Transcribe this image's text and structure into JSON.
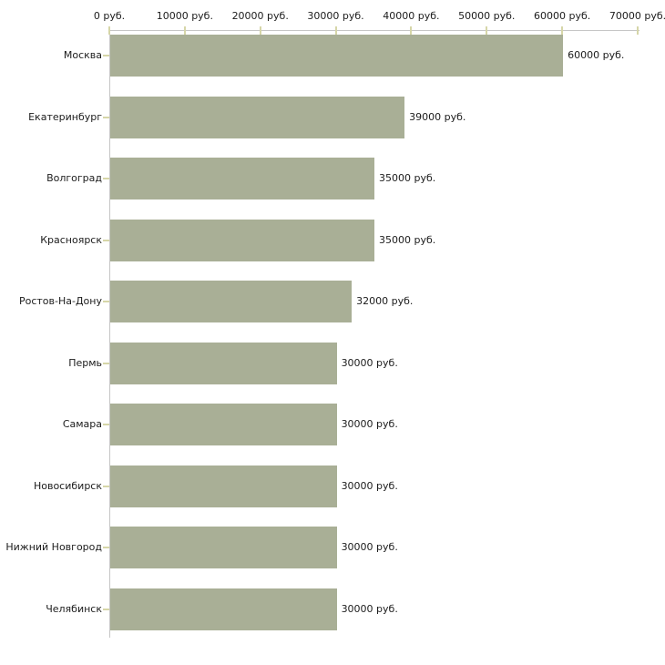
{
  "chart_data": {
    "type": "bar",
    "orientation": "horizontal",
    "title": "",
    "xlabel": "",
    "ylabel": "",
    "unit": "руб.",
    "categories": [
      "Москва",
      "Екатеринбург",
      "Волгоград",
      "Красноярск",
      "Ростов-На-Дону",
      "Пермь",
      "Самара",
      "Новосибирск",
      "Нижний Новгород",
      "Челябинск"
    ],
    "values": [
      60000,
      39000,
      35000,
      35000,
      32000,
      30000,
      30000,
      30000,
      30000,
      30000
    ],
    "value_labels": [
      "60000 руб.",
      "39000 руб.",
      "35000 руб.",
      "35000 руб.",
      "32000 руб.",
      "30000 руб.",
      "30000 руб.",
      "30000 руб.",
      "30000 руб.",
      "30000 руб."
    ],
    "xlim": [
      0,
      70000
    ],
    "x_ticks": [
      0,
      10000,
      20000,
      30000,
      40000,
      50000,
      60000,
      70000
    ],
    "x_tick_labels": [
      "0 руб.",
      "10000 руб.",
      "20000 руб.",
      "30000 руб.",
      "40000 руб.",
      "50000 руб.",
      "60000 руб.",
      "70000 руб."
    ],
    "grid": false,
    "legend": false,
    "colors": {
      "bar": "#a9af96",
      "axis": "#c6c6c6",
      "tick": "#d6d6a8",
      "text": "#1c1c1c",
      "background": "#ffffff"
    }
  }
}
